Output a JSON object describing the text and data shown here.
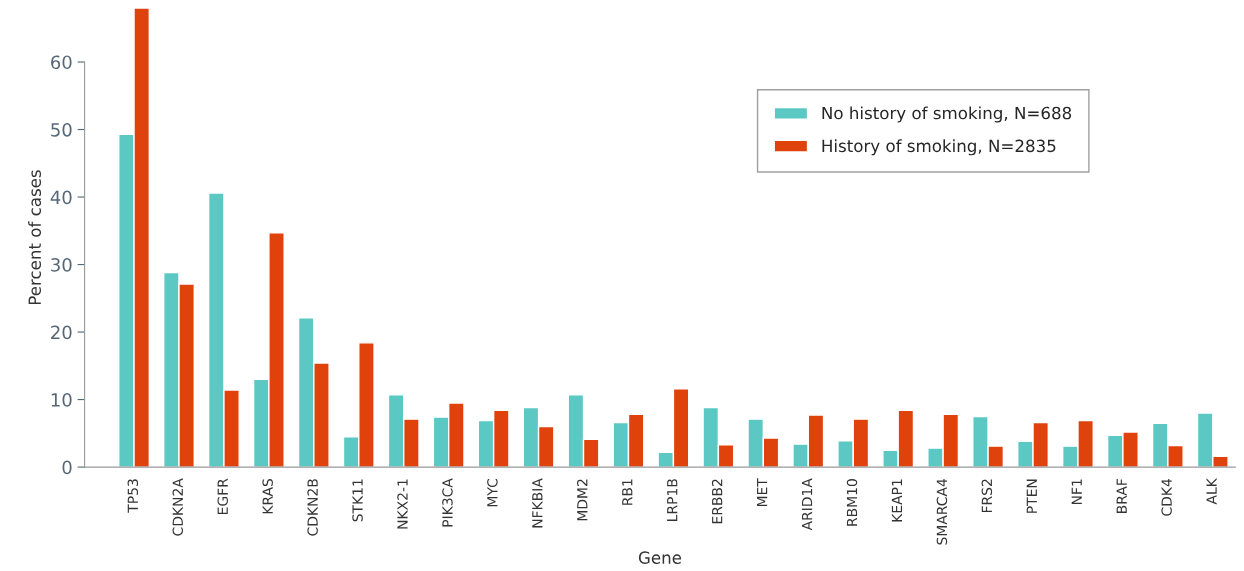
{
  "chart_data": {
    "type": "bar",
    "xlabel": "Gene",
    "ylabel": "Percent of cases",
    "categories": [
      "TP53",
      "CDKN2A",
      "EGFR",
      "KRAS",
      "CDKN2B",
      "STK11",
      "NKX2-1",
      "PIK3CA",
      "MYC",
      "NFKBIA",
      "MDM2",
      "RB1",
      "LRP1B",
      "ERBB2",
      "MET",
      "ARID1A",
      "RBM10",
      "KEAP1",
      "SMARCA4",
      "FRS2",
      "PTEN",
      "NF1",
      "BRAF",
      "CDK4",
      "ALK"
    ],
    "series": [
      {
        "name": "No history of smoking, N=688",
        "color": "#5bc8c4",
        "values": [
          49.3,
          28.8,
          40.6,
          13.0,
          22.1,
          4.5,
          10.7,
          7.4,
          6.9,
          8.8,
          10.7,
          6.6,
          2.2,
          8.8,
          7.1,
          3.4,
          3.9,
          2.5,
          2.8,
          7.5,
          3.8,
          3.1,
          4.7,
          6.5,
          8.0
        ]
      },
      {
        "name": "History of smoking, N=2835",
        "color": "#e0420c",
        "values": [
          68,
          27.1,
          11.4,
          34.7,
          15.4,
          18.4,
          7.1,
          9.5,
          8.4,
          6.0,
          4.1,
          7.8,
          11.6,
          3.3,
          4.3,
          7.7,
          7.1,
          8.4,
          7.8,
          3.1,
          6.6,
          6.9,
          5.2,
          3.2,
          1.6
        ]
      }
    ],
    "ylim": [
      0,
      68
    ],
    "yticks": [
      0,
      10,
      20,
      30,
      40,
      50,
      60
    ],
    "grid": false,
    "legend": "top right"
  }
}
